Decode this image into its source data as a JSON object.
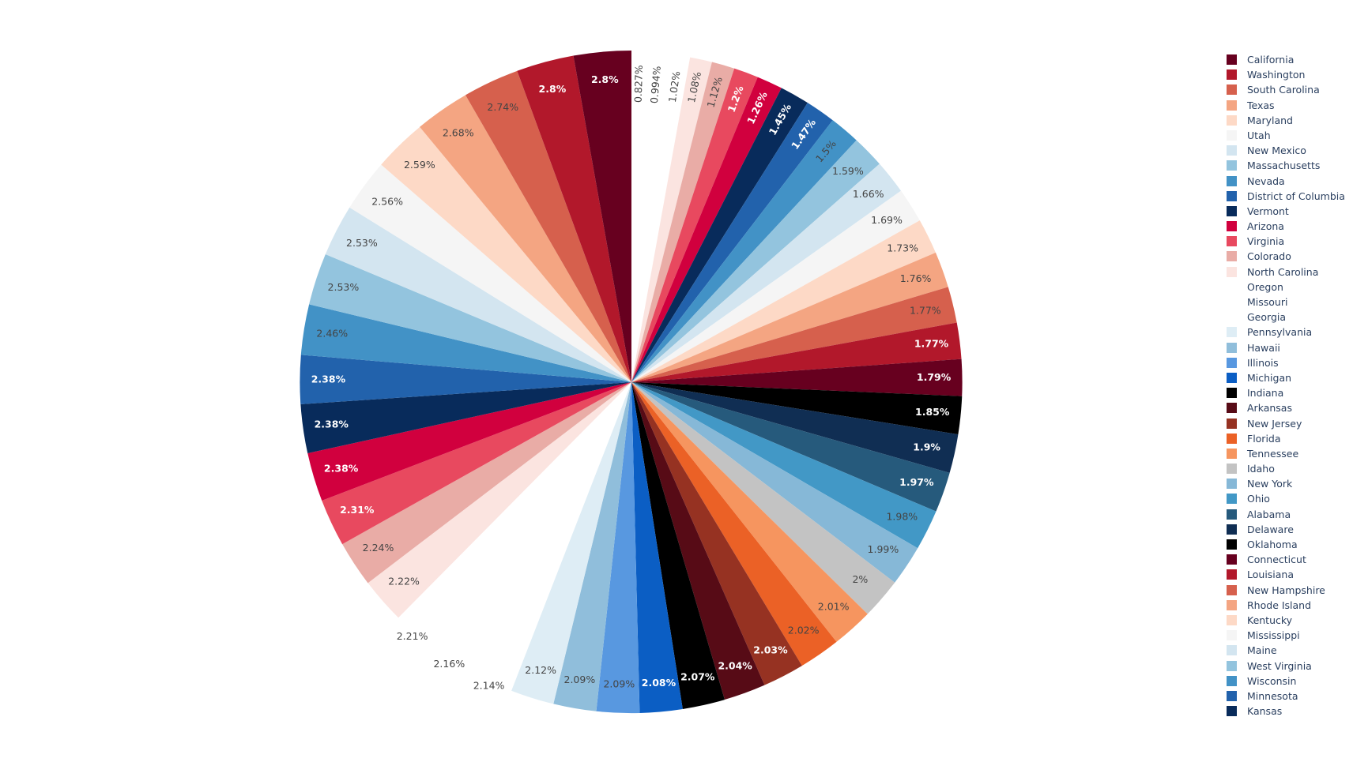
{
  "chart_data": {
    "type": "pie",
    "sort": "ascending-clockwise",
    "slices": [
      {
        "label": "Oregon",
        "value": 0.827,
        "color": "#ffffff"
      },
      {
        "label": "Missouri",
        "value": 0.994,
        "color": "#ffffff"
      },
      {
        "label": "Georgia",
        "value": 1.02,
        "color": "#ffffff"
      },
      {
        "label": "North Carolina",
        "value": 1.08,
        "color": "#fbe4e0"
      },
      {
        "label": "Colorado",
        "value": 1.12,
        "color": "#e9aca6"
      },
      {
        "label": "Virginia",
        "value": 1.2,
        "color": "#e8495f"
      },
      {
        "label": "Arizona",
        "value": 1.26,
        "color": "#d1003e"
      },
      {
        "label": "Vermont",
        "value": 1.45,
        "color": "#082b5b"
      },
      {
        "label": "District of Columbia",
        "value": 1.47,
        "color": "#2262ac"
      },
      {
        "label": "Nevada",
        "value": 1.5,
        "color": "#4292c6"
      },
      {
        "label": "Massachusetts",
        "value": 1.59,
        "color": "#93c4de"
      },
      {
        "label": "New Mexico",
        "value": 1.66,
        "color": "#d3e5f0"
      },
      {
        "label": "Utah",
        "value": 1.69,
        "color": "#f5f5f5"
      },
      {
        "label": "Maryland",
        "value": 1.73,
        "color": "#fdd9c6"
      },
      {
        "label": "Texas",
        "value": 1.76,
        "color": "#f4a582"
      },
      {
        "label": "South Carolina",
        "value": 1.77,
        "color": "#d6604d"
      },
      {
        "label": "Washington",
        "value": 1.77,
        "color": "#b2182b"
      },
      {
        "label": "California",
        "value": 1.79,
        "color": "#67001f"
      },
      {
        "label": "Indiana",
        "value": 1.85,
        "color": "#000000"
      },
      {
        "label": "Delaware",
        "value": 1.9,
        "color": "#102e53"
      },
      {
        "label": "Alabama",
        "value": 1.97,
        "color": "#265a7c"
      },
      {
        "label": "Ohio",
        "value": 1.98,
        "color": "#4298c6"
      },
      {
        "label": "New York",
        "value": 1.99,
        "color": "#86b8d7"
      },
      {
        "label": "Idaho",
        "value": 2.0,
        "color": "#c3c3c3"
      },
      {
        "label": "Tennessee",
        "value": 2.01,
        "color": "#f6955f"
      },
      {
        "label": "Florida",
        "value": 2.02,
        "color": "#eb6126"
      },
      {
        "label": "New Jersey",
        "value": 2.03,
        "color": "#963222"
      },
      {
        "label": "Arkansas",
        "value": 2.04,
        "color": "#570b16"
      },
      {
        "label": "Oklahoma",
        "value": 2.07,
        "color": "#000000"
      },
      {
        "label": "Michigan",
        "value": 2.08,
        "color": "#0b5ec4"
      },
      {
        "label": "Illinois",
        "value": 2.09,
        "color": "#5898e0"
      },
      {
        "label": "Hawaii",
        "value": 2.09,
        "color": "#90bedb"
      },
      {
        "label": "Pennsylvania",
        "value": 2.12,
        "color": "#deedf5"
      },
      {
        "label": "Oregon",
        "value": 2.14,
        "color": "#ffffff"
      },
      {
        "label": "Missouri",
        "value": 2.16,
        "color": "#ffffff"
      },
      {
        "label": "Georgia",
        "value": 2.21,
        "color": "#ffffff"
      },
      {
        "label": "North Carolina",
        "value": 2.22,
        "color": "#fbe4e0"
      },
      {
        "label": "Colorado",
        "value": 2.24,
        "color": "#e9aca6"
      },
      {
        "label": "Virginia",
        "value": 2.31,
        "color": "#e8495f"
      },
      {
        "label": "Arizona",
        "value": 2.38,
        "color": "#d1003e"
      },
      {
        "label": "Vermont",
        "value": 2.38,
        "color": "#082b5b"
      },
      {
        "label": "District of Columbia",
        "value": 2.38,
        "color": "#2262ac"
      },
      {
        "label": "Nevada",
        "value": 2.46,
        "color": "#4292c6"
      },
      {
        "label": "Massachusetts",
        "value": 2.53,
        "color": "#93c4de"
      },
      {
        "label": "New Mexico",
        "value": 2.53,
        "color": "#d3e5f0"
      },
      {
        "label": "Utah",
        "value": 2.56,
        "color": "#f5f5f5"
      },
      {
        "label": "Maryland",
        "value": 2.59,
        "color": "#fdd9c6"
      },
      {
        "label": "Texas",
        "value": 2.68,
        "color": "#f4a582"
      },
      {
        "label": "South Carolina",
        "value": 2.74,
        "color": "#d6604d"
      },
      {
        "label": "Washington",
        "value": 2.8,
        "color": "#b2182b"
      },
      {
        "label": "California",
        "value": 2.8,
        "color": "#67001f"
      }
    ],
    "slice_labels": [
      "0.827%",
      "0.994%",
      "1.02%",
      "1.08%",
      "1.12%",
      "1.2%",
      "1.26%",
      "1.45%",
      "1.47%",
      "1.5%",
      "1.59%",
      "1.66%",
      "1.69%",
      "1.73%",
      "1.76%",
      "1.77%",
      "1.77%",
      "1.79%",
      "1.85%",
      "1.9%",
      "1.97%",
      "1.98%",
      "1.99%",
      "2%",
      "2.01%",
      "2.02%",
      "2.03%",
      "2.04%",
      "2.07%",
      "2.08%",
      "2.09%",
      "2.09%",
      "2.12%",
      "2.14%",
      "2.16%",
      "2.21%",
      "2.22%",
      "2.24%",
      "2.31%",
      "2.38%",
      "2.38%",
      "2.38%",
      "2.46%",
      "2.53%",
      "2.53%",
      "2.56%",
      "2.59%",
      "2.68%",
      "2.74%",
      "2.8%",
      "2.8%"
    ],
    "legend": {
      "placement": "right",
      "items": [
        {
          "label": "California",
          "color": "#67001f"
        },
        {
          "label": "Washington",
          "color": "#b2182b"
        },
        {
          "label": "South Carolina",
          "color": "#d6604d"
        },
        {
          "label": "Texas",
          "color": "#f4a582"
        },
        {
          "label": "Maryland",
          "color": "#fdd9c6"
        },
        {
          "label": "Utah",
          "color": "#f5f5f5"
        },
        {
          "label": "New Mexico",
          "color": "#d3e5f0"
        },
        {
          "label": "Massachusetts",
          "color": "#93c4de"
        },
        {
          "label": "Nevada",
          "color": "#4292c6"
        },
        {
          "label": "District of Columbia",
          "color": "#2262ac"
        },
        {
          "label": "Vermont",
          "color": "#082b5b"
        },
        {
          "label": "Arizona",
          "color": "#d1003e"
        },
        {
          "label": "Virginia",
          "color": "#e8495f"
        },
        {
          "label": "Colorado",
          "color": "#e9aca6"
        },
        {
          "label": "North Carolina",
          "color": "#fbe4e0"
        },
        {
          "label": "Oregon",
          "color": "#ffffff"
        },
        {
          "label": "Missouri",
          "color": "#ffffff"
        },
        {
          "label": "Georgia",
          "color": "#ffffff"
        },
        {
          "label": "Pennsylvania",
          "color": "#deedf5"
        },
        {
          "label": "Hawaii",
          "color": "#90bedb"
        },
        {
          "label": "Illinois",
          "color": "#5898e0"
        },
        {
          "label": "Michigan",
          "color": "#0b5ec4"
        },
        {
          "label": "Indiana",
          "color": "#000000"
        },
        {
          "label": "Arkansas",
          "color": "#570b16"
        },
        {
          "label": "New Jersey",
          "color": "#963222"
        },
        {
          "label": "Florida",
          "color": "#eb6126"
        },
        {
          "label": "Tennessee",
          "color": "#f6955f"
        },
        {
          "label": "Idaho",
          "color": "#c3c3c3"
        },
        {
          "label": "New York",
          "color": "#86b8d7"
        },
        {
          "label": "Ohio",
          "color": "#4298c6"
        },
        {
          "label": "Alabama",
          "color": "#265a7c"
        },
        {
          "label": "Delaware",
          "color": "#102e53"
        },
        {
          "label": "Oklahoma",
          "color": "#000000"
        },
        {
          "label": "Connecticut",
          "color": "#67001f"
        },
        {
          "label": "Louisiana",
          "color": "#b2182b"
        },
        {
          "label": "New Hampshire",
          "color": "#d6604d"
        },
        {
          "label": "Rhode Island",
          "color": "#f4a582"
        },
        {
          "label": "Kentucky",
          "color": "#fdd9c6"
        },
        {
          "label": "Mississippi",
          "color": "#f5f5f5"
        },
        {
          "label": "Maine",
          "color": "#d3e5f0"
        },
        {
          "label": "West Virginia",
          "color": "#93c4de"
        },
        {
          "label": "Wisconsin",
          "color": "#4292c6"
        },
        {
          "label": "Minnesota",
          "color": "#2262ac"
        },
        {
          "label": "Kansas",
          "color": "#082b5b"
        }
      ]
    }
  }
}
